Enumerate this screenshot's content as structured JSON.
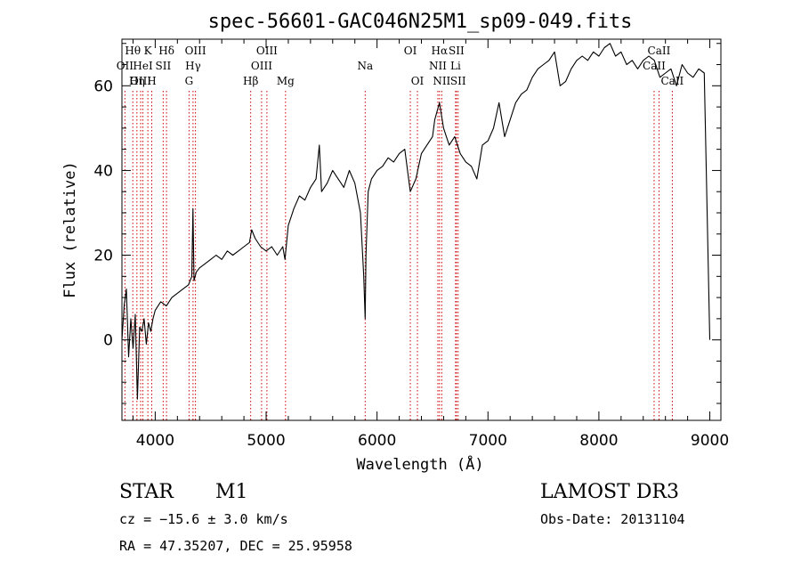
{
  "chart_data": {
    "type": "line",
    "title": "spec-56601-GAC046N25M1_sp09-049.fits",
    "xlabel": "Wavelength (Å)",
    "ylabel": "Flux (relative)",
    "xlim": [
      3700,
      9100
    ],
    "ylim": [
      -19,
      71
    ],
    "xticks": [
      4000,
      5000,
      6000,
      7000,
      8000,
      9000
    ],
    "yticks": [
      0,
      20,
      40,
      60
    ],
    "series": [
      {
        "name": "flux",
        "x": [
          3700,
          3720,
          3740,
          3760,
          3780,
          3800,
          3820,
          3840,
          3860,
          3880,
          3900,
          3920,
          3940,
          3960,
          3980,
          4000,
          4050,
          4100,
          4150,
          4200,
          4250,
          4300,
          4330,
          4340,
          4350,
          4370,
          4400,
          4450,
          4500,
          4550,
          4600,
          4650,
          4700,
          4750,
          4800,
          4850,
          4870,
          4900,
          4950,
          5000,
          5050,
          5100,
          5150,
          5170,
          5200,
          5250,
          5300,
          5350,
          5400,
          5450,
          5480,
          5500,
          5550,
          5600,
          5650,
          5700,
          5750,
          5800,
          5850,
          5880,
          5893,
          5900,
          5920,
          5950,
          6000,
          6050,
          6100,
          6150,
          6200,
          6250,
          6300,
          6350,
          6400,
          6450,
          6500,
          6520,
          6563,
          6600,
          6650,
          6700,
          6750,
          6800,
          6850,
          6900,
          6950,
          7000,
          7050,
          7100,
          7150,
          7200,
          7250,
          7300,
          7350,
          7400,
          7450,
          7500,
          7550,
          7600,
          7650,
          7700,
          7750,
          7800,
          7850,
          7900,
          7950,
          8000,
          8050,
          8100,
          8150,
          8200,
          8250,
          8300,
          8350,
          8400,
          8450,
          8500,
          8550,
          8600,
          8650,
          8700,
          8750,
          8800,
          8850,
          8900,
          8950,
          9000
        ],
        "y": [
          0,
          8,
          12,
          -4,
          5,
          -2,
          6,
          -14,
          3,
          2,
          5,
          -1,
          4,
          2,
          5,
          7,
          9,
          8,
          10,
          11,
          12,
          13,
          15,
          31,
          14,
          16,
          17,
          18,
          19,
          20,
          19,
          21,
          20,
          21,
          22,
          23,
          26,
          24,
          22,
          21,
          22,
          20,
          22,
          19,
          27,
          31,
          34,
          33,
          36,
          38,
          46,
          35,
          37,
          40,
          38,
          36,
          40,
          37,
          30,
          15,
          5,
          20,
          35,
          38,
          40,
          41,
          43,
          42,
          44,
          45,
          35,
          38,
          44,
          46,
          48,
          52,
          56,
          50,
          46,
          48,
          44,
          42,
          41,
          38,
          46,
          47,
          50,
          56,
          48,
          52,
          56,
          58,
          59,
          62,
          64,
          65,
          66,
          68,
          60,
          61,
          64,
          66,
          67,
          66,
          68,
          67,
          69,
          70,
          67,
          68,
          65,
          66,
          64,
          66,
          67,
          66,
          62,
          63,
          64,
          60,
          65,
          63,
          62,
          64,
          63,
          0
        ]
      }
    ],
    "emission_lines": [
      {
        "label": "Hθ",
        "wave": 3798,
        "row": 1
      },
      {
        "label": "OII",
        "wave": 3727,
        "row": 2
      },
      {
        "label": "OIII",
        "wave": 3869,
        "row": 3
      },
      {
        "label": "K",
        "wave": 3934,
        "row": 1
      },
      {
        "label": "HeI",
        "wave": 3889,
        "row": 2
      },
      {
        "label": "Hη",
        "wave": 3835,
        "row": 3
      },
      {
        "label": "SII",
        "wave": 4072,
        "row": 2
      },
      {
        "label": "H",
        "wave": 3969,
        "row": 3
      },
      {
        "label": "Hδ",
        "wave": 4102,
        "row": 1
      },
      {
        "label": "OIII",
        "wave": 4363,
        "row": 1
      },
      {
        "label": "Hγ",
        "wave": 4341,
        "row": 2
      },
      {
        "label": "G",
        "wave": 4305,
        "row": 3
      },
      {
        "label": "Hβ",
        "wave": 4861,
        "row": 3
      },
      {
        "label": "OIII",
        "wave": 5007,
        "row": 1
      },
      {
        "label": "OIII",
        "wave": 4959,
        "row": 2
      },
      {
        "label": "Mg",
        "wave": 5175,
        "row": 3
      },
      {
        "label": "Na",
        "wave": 5893,
        "row": 2
      },
      {
        "label": "OI",
        "wave": 6300,
        "row": 1
      },
      {
        "label": "OI",
        "wave": 6364,
        "row": 3
      },
      {
        "label": "Hα",
        "wave": 6563,
        "row": 1
      },
      {
        "label": "NII",
        "wave": 6548,
        "row": 2
      },
      {
        "label": "NII",
        "wave": 6583,
        "row": 3
      },
      {
        "label": "SII",
        "wave": 6716,
        "row": 1
      },
      {
        "label": "Li",
        "wave": 6708,
        "row": 2
      },
      {
        "label": "SII",
        "wave": 6731,
        "row": 3
      },
      {
        "label": "CaII",
        "wave": 8542,
        "row": 1
      },
      {
        "label": "CaII",
        "wave": 8498,
        "row": 2
      },
      {
        "label": "CaII",
        "wave": 8662,
        "row": 3
      }
    ]
  },
  "info": {
    "object_class": "STAR",
    "subclass": "M1",
    "cz": "cz = −15.6 ± 3.0 km/s",
    "coords": "RA =  47.35207, DEC =  25.95958",
    "survey": "LAMOST DR3",
    "obs_date": "Obs-Date: 20131104"
  }
}
